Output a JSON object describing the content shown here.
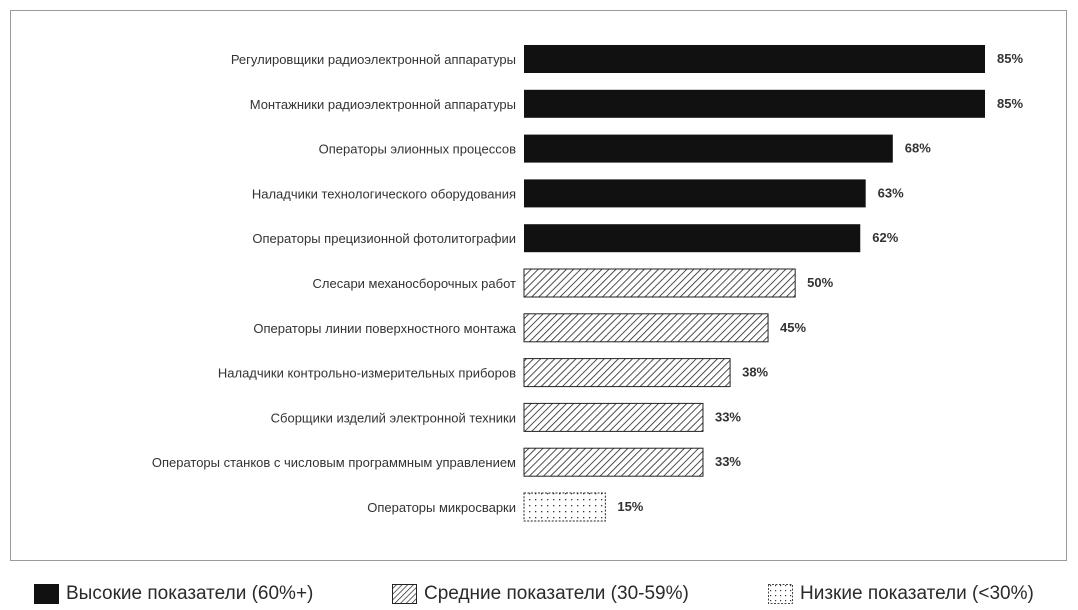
{
  "colors": {
    "bar": "#111111",
    "pattern": "#222222",
    "border": "#9a9a9a"
  },
  "chart_data": {
    "type": "bar",
    "orientation": "horizontal",
    "categories": [
      "Регулировщики радиоэлектронной аппаратуры",
      "Монтажники радиоэлектронной аппаратуры",
      "Операторы элионных процессов",
      "Наладчики технологического оборудования",
      "Операторы прецизионной фотолитографии",
      "Слесари механосборочных работ",
      "Операторы линии поверхностного монтажа",
      "Наладчики контрольно-измерительных приборов",
      "Сборщики изделий электронной техники",
      "Операторы станков с числовым программным управлением",
      "Операторы микросварки"
    ],
    "values": [
      85,
      85,
      68,
      63,
      62,
      50,
      45,
      38,
      33,
      33,
      15
    ],
    "value_labels": [
      "85%",
      "85%",
      "68%",
      "63%",
      "62%",
      "50%",
      "45%",
      "38%",
      "33%",
      "33%",
      "15%"
    ],
    "groups": [
      "high",
      "high",
      "high",
      "high",
      "high",
      "medium",
      "medium",
      "medium",
      "medium",
      "medium",
      "low"
    ],
    "xlim": [
      0,
      85
    ],
    "grid": false,
    "legend_position": "bottom",
    "title": "",
    "xlabel": "",
    "ylabel": ""
  },
  "legend": [
    {
      "key": "high",
      "label": "Высокие показатели (60%+)"
    },
    {
      "key": "medium",
      "label": "Средние показатели (30-59%)"
    },
    {
      "key": "low",
      "label": "Низкие показатели (<30%)"
    }
  ]
}
